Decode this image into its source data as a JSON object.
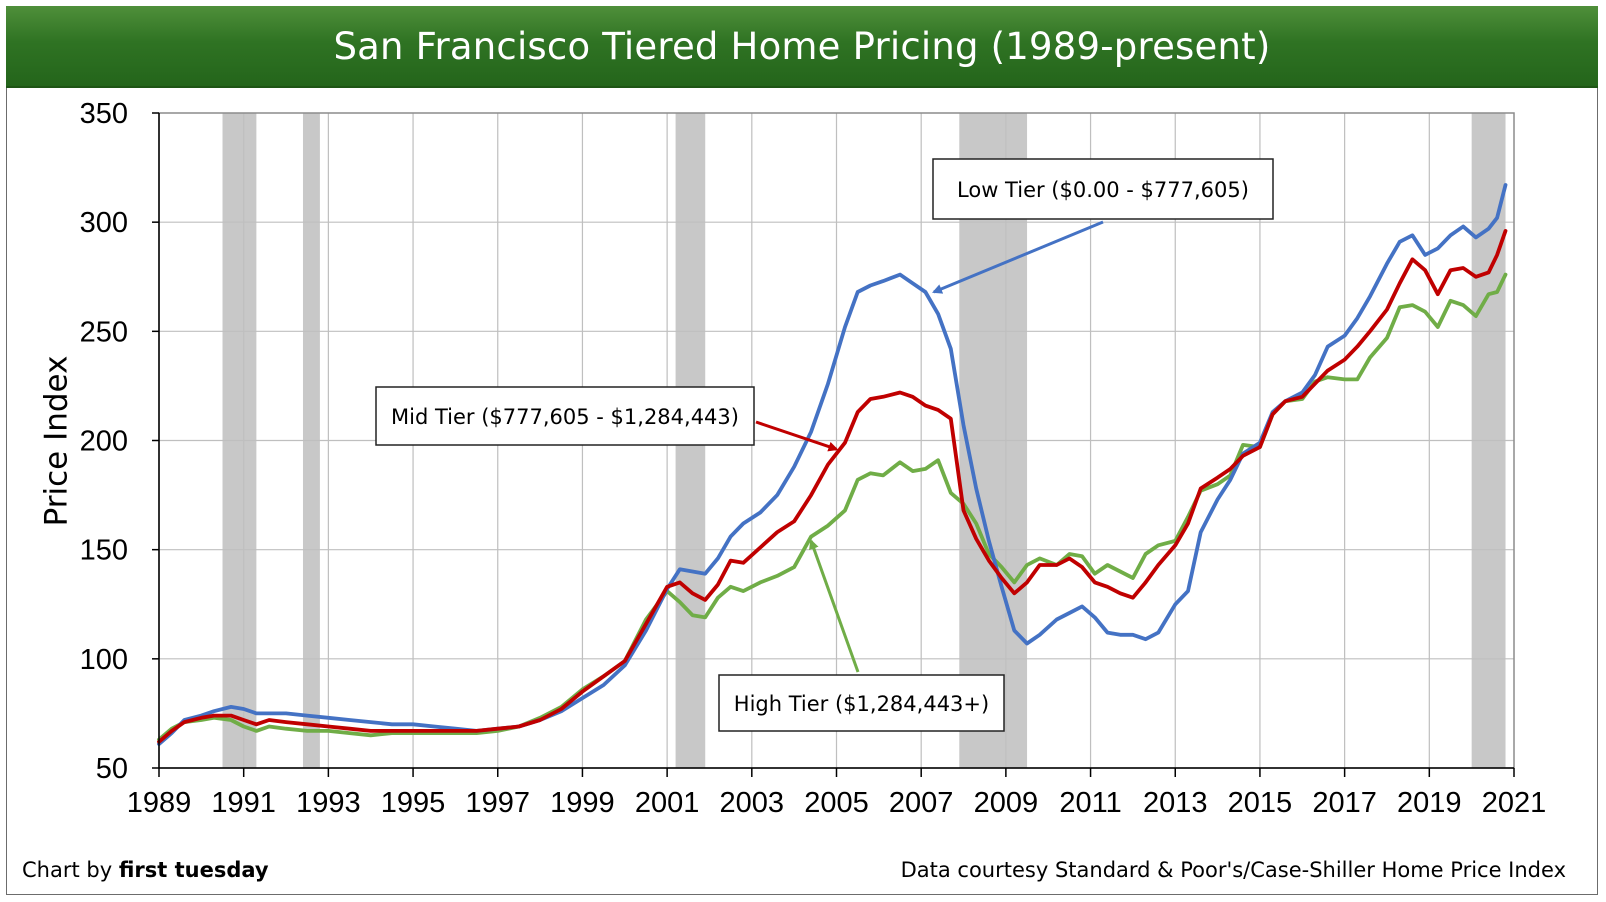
{
  "title": "San Francisco Tiered Home Pricing (1989-present)",
  "footer": {
    "credit_prefix": "Chart by ",
    "credit_brand": "first tuesday",
    "source": "Data courtesy Standard & Poor's/Case-Shiller Home Price Index"
  },
  "colors": {
    "low": "#4472c4",
    "mid": "#c00000",
    "high": "#70ad47",
    "recession": "#c8c8c8",
    "grid": "#bfbfbf"
  },
  "chart_data": {
    "type": "line",
    "ylabel": "Price Index",
    "xlabel": "",
    "ylim": [
      50,
      350
    ],
    "xlim": [
      1989,
      2021
    ],
    "yticks": [
      50,
      100,
      150,
      200,
      250,
      300,
      350
    ],
    "xticks": [
      1989,
      1991,
      1993,
      1995,
      1997,
      1999,
      2001,
      2003,
      2005,
      2007,
      2009,
      2011,
      2013,
      2015,
      2017,
      2019,
      2021
    ],
    "grid": true,
    "recessions": [
      [
        1990.5,
        1991.3
      ],
      [
        1992.4,
        1992.8
      ],
      [
        2001.2,
        2001.9
      ],
      [
        2007.9,
        2009.5
      ],
      [
        2020.0,
        2020.8
      ]
    ],
    "annotations": [
      {
        "text": "Low Tier ($0.00 - $777,605)",
        "series": "low"
      },
      {
        "text": "Mid Tier ($777,605 - $1,284,443)",
        "series": "mid"
      },
      {
        "text": "High Tier ($1,284,443+)",
        "series": "high"
      }
    ],
    "series": [
      {
        "name": "Low Tier",
        "key": "low",
        "x": [
          1989.0,
          1989.3,
          1989.6,
          1990.0,
          1990.3,
          1990.7,
          1991.0,
          1991.3,
          1991.6,
          1992.0,
          1992.5,
          1993.0,
          1993.5,
          1994.0,
          1994.5,
          1995.0,
          1995.5,
          1996.0,
          1996.5,
          1997.0,
          1997.5,
          1998.0,
          1998.5,
          1999.0,
          1999.5,
          2000.0,
          2000.5,
          2001.0,
          2001.3,
          2001.6,
          2001.9,
          2002.2,
          2002.5,
          2002.8,
          2003.2,
          2003.6,
          2004.0,
          2004.4,
          2004.8,
          2005.2,
          2005.5,
          2005.8,
          2006.1,
          2006.5,
          2006.8,
          2007.1,
          2007.4,
          2007.7,
          2008.0,
          2008.3,
          2008.6,
          2008.9,
          2009.2,
          2009.5,
          2009.8,
          2010.2,
          2010.5,
          2010.8,
          2011.1,
          2011.4,
          2011.7,
          2012.0,
          2012.3,
          2012.6,
          2013.0,
          2013.3,
          2013.6,
          2014.0,
          2014.3,
          2014.6,
          2015.0,
          2015.3,
          2015.6,
          2016.0,
          2016.3,
          2016.6,
          2017.0,
          2017.3,
          2017.6,
          2018.0,
          2018.3,
          2018.6,
          2018.9,
          2019.2,
          2019.5,
          2019.8,
          2020.1,
          2020.4,
          2020.6,
          2020.8
        ],
        "y": [
          61,
          66,
          72,
          74,
          76,
          78,
          77,
          75,
          75,
          75,
          74,
          73,
          72,
          71,
          70,
          70,
          69,
          68,
          67,
          68,
          69,
          72,
          76,
          82,
          88,
          97,
          113,
          132,
          141,
          140,
          139,
          146,
          156,
          162,
          167,
          175,
          188,
          204,
          226,
          252,
          268,
          271,
          273,
          276,
          272,
          268,
          258,
          242,
          207,
          178,
          154,
          133,
          113,
          107,
          111,
          118,
          121,
          124,
          119,
          112,
          111,
          111,
          109,
          112,
          125,
          131,
          158,
          173,
          182,
          194,
          199,
          213,
          218,
          222,
          230,
          243,
          248,
          256,
          266,
          281,
          291,
          294,
          285,
          288,
          294,
          298,
          293,
          297,
          302,
          317
        ]
      },
      {
        "name": "Mid Tier",
        "key": "mid",
        "x": [
          1989.0,
          1989.3,
          1989.6,
          1990.0,
          1990.3,
          1990.7,
          1991.0,
          1991.3,
          1991.6,
          1992.0,
          1992.5,
          1993.0,
          1993.5,
          1994.0,
          1994.5,
          1995.0,
          1995.5,
          1996.0,
          1996.5,
          1997.0,
          1997.5,
          1998.0,
          1998.5,
          1999.0,
          1999.5,
          2000.0,
          2000.5,
          2001.0,
          2001.3,
          2001.6,
          2001.9,
          2002.2,
          2002.5,
          2002.8,
          2003.2,
          2003.6,
          2004.0,
          2004.4,
          2004.8,
          2005.2,
          2005.5,
          2005.8,
          2006.1,
          2006.5,
          2006.8,
          2007.1,
          2007.4,
          2007.7,
          2008.0,
          2008.3,
          2008.6,
          2008.9,
          2009.2,
          2009.5,
          2009.8,
          2010.2,
          2010.5,
          2010.8,
          2011.1,
          2011.4,
          2011.7,
          2012.0,
          2012.3,
          2012.6,
          2013.0,
          2013.3,
          2013.6,
          2014.0,
          2014.3,
          2014.6,
          2015.0,
          2015.3,
          2015.6,
          2016.0,
          2016.3,
          2016.6,
          2017.0,
          2017.3,
          2017.6,
          2018.0,
          2018.3,
          2018.6,
          2018.9,
          2019.2,
          2019.5,
          2019.8,
          2020.1,
          2020.4,
          2020.6,
          2020.8
        ],
        "y": [
          62,
          67,
          71,
          73,
          74,
          74,
          72,
          70,
          72,
          71,
          70,
          69,
          68,
          67,
          67,
          67,
          67,
          67,
          67,
          68,
          69,
          72,
          77,
          85,
          92,
          99,
          116,
          133,
          135,
          130,
          127,
          134,
          145,
          144,
          151,
          158,
          163,
          175,
          189,
          199,
          213,
          219,
          220,
          222,
          220,
          216,
          214,
          210,
          168,
          155,
          145,
          137,
          130,
          135,
          143,
          143,
          146,
          142,
          135,
          133,
          130,
          128,
          135,
          143,
          152,
          162,
          178,
          183,
          187,
          193,
          197,
          212,
          218,
          220,
          226,
          232,
          237,
          243,
          250,
          260,
          272,
          283,
          278,
          267,
          278,
          279,
          275,
          277,
          285,
          296
        ]
      },
      {
        "name": "High Tier",
        "key": "high",
        "x": [
          1989.0,
          1989.3,
          1989.6,
          1990.0,
          1990.3,
          1990.7,
          1991.0,
          1991.3,
          1991.6,
          1992.0,
          1992.5,
          1993.0,
          1993.5,
          1994.0,
          1994.5,
          1995.0,
          1995.5,
          1996.0,
          1996.5,
          1997.0,
          1997.5,
          1998.0,
          1998.5,
          1999.0,
          1999.5,
          2000.0,
          2000.5,
          2001.0,
          2001.3,
          2001.6,
          2001.9,
          2002.2,
          2002.5,
          2002.8,
          2003.2,
          2003.6,
          2004.0,
          2004.4,
          2004.8,
          2005.2,
          2005.5,
          2005.8,
          2006.1,
          2006.5,
          2006.8,
          2007.1,
          2007.4,
          2007.7,
          2008.0,
          2008.3,
          2008.6,
          2008.9,
          2009.2,
          2009.5,
          2009.8,
          2010.2,
          2010.5,
          2010.8,
          2011.1,
          2011.4,
          2011.7,
          2012.0,
          2012.3,
          2012.6,
          2013.0,
          2013.3,
          2013.6,
          2014.0,
          2014.3,
          2014.6,
          2015.0,
          2015.3,
          2015.6,
          2016.0,
          2016.3,
          2016.6,
          2017.0,
          2017.3,
          2017.6,
          2018.0,
          2018.3,
          2018.6,
          2018.9,
          2019.2,
          2019.5,
          2019.8,
          2020.1,
          2020.4,
          2020.6,
          2020.8
        ],
        "y": [
          63,
          68,
          71,
          72,
          73,
          72,
          69,
          67,
          69,
          68,
          67,
          67,
          66,
          65,
          66,
          66,
          66,
          66,
          66,
          67,
          69,
          73,
          78,
          86,
          92,
          99,
          118,
          131,
          126,
          120,
          119,
          128,
          133,
          131,
          135,
          138,
          142,
          156,
          161,
          168,
          182,
          185,
          184,
          190,
          186,
          187,
          191,
          176,
          171,
          162,
          148,
          142,
          135,
          143,
          146,
          143,
          148,
          147,
          139,
          143,
          140,
          137,
          148,
          152,
          154,
          165,
          177,
          180,
          184,
          198,
          197,
          212,
          218,
          219,
          227,
          229,
          228,
          228,
          238,
          247,
          261,
          262,
          259,
          252,
          264,
          262,
          257,
          267,
          268,
          276
        ]
      }
    ]
  }
}
